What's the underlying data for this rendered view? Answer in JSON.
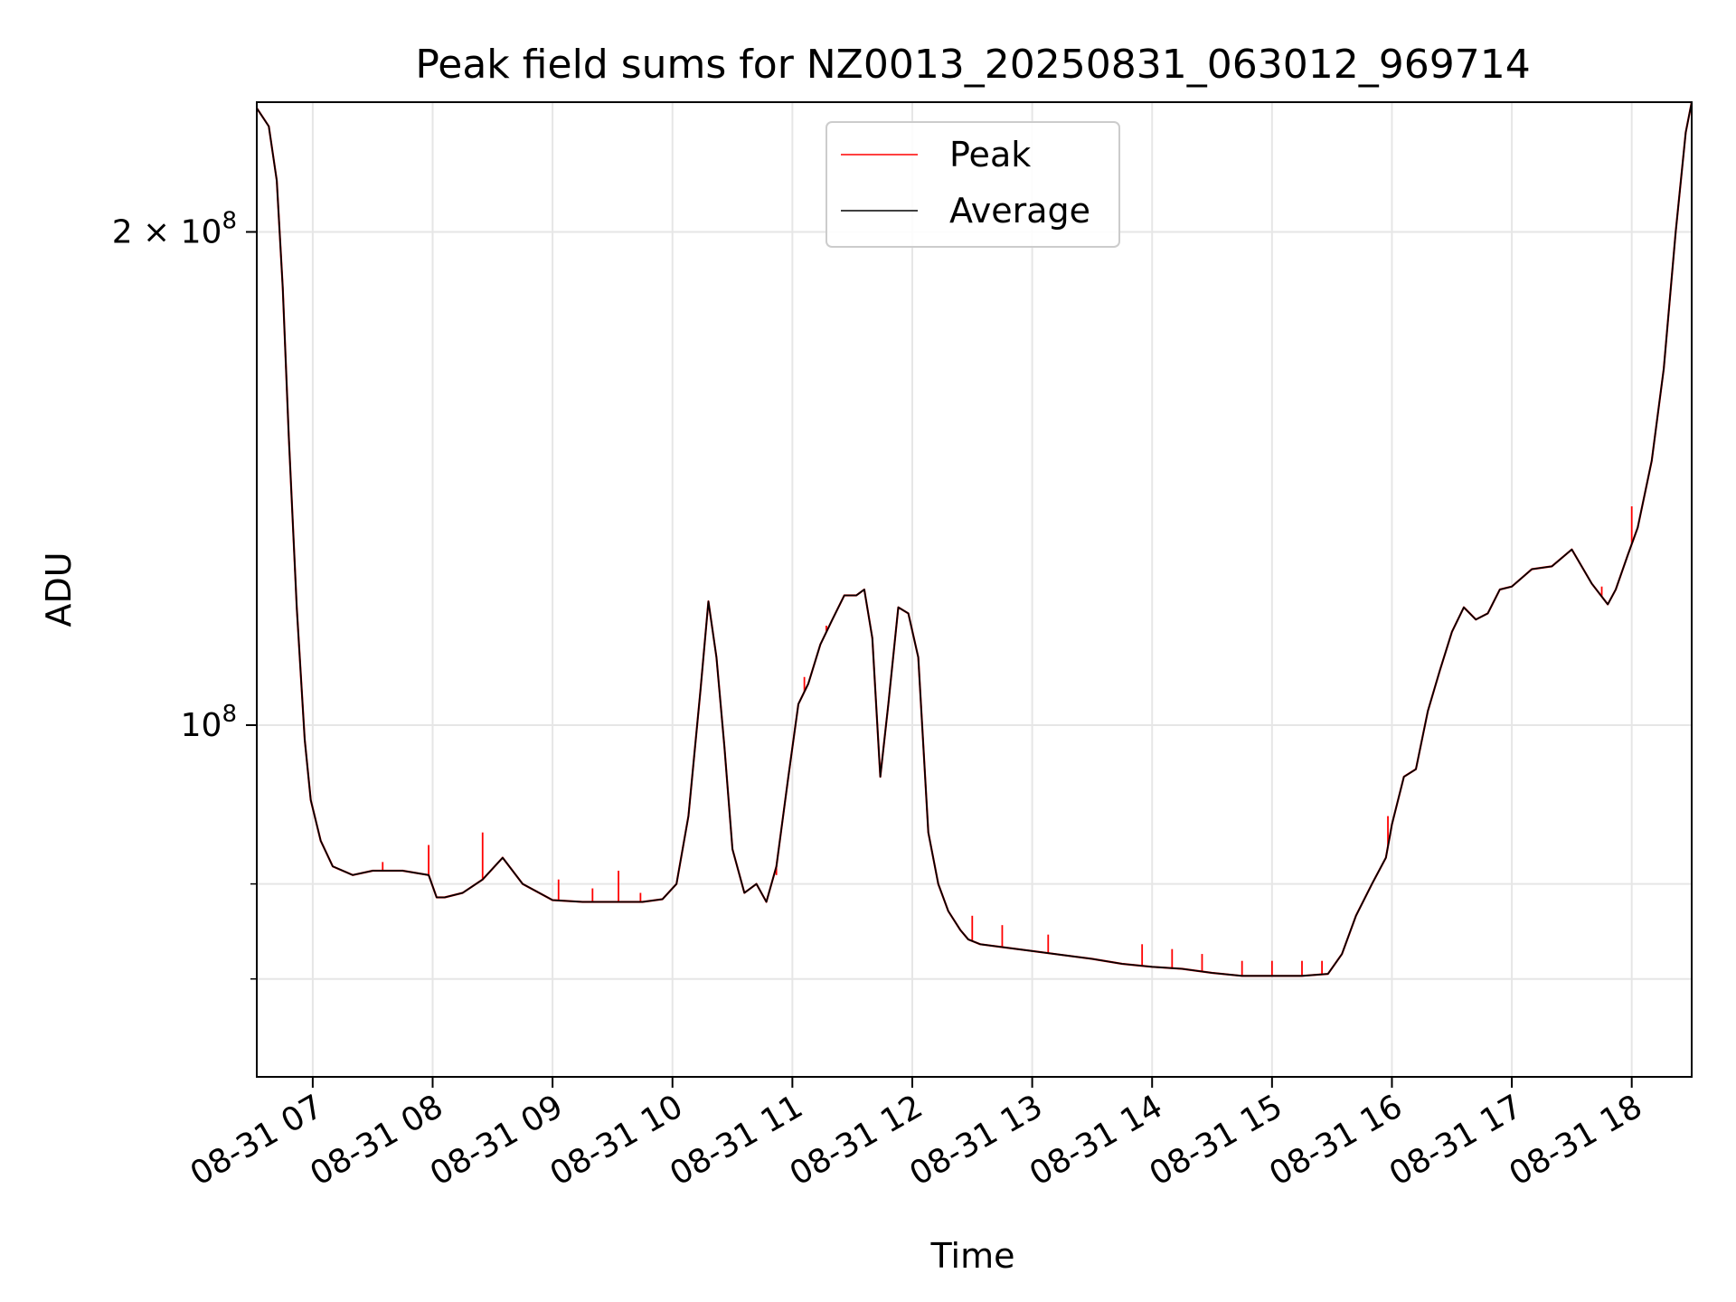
{
  "chart_data": {
    "type": "line",
    "title": "Peak field sums for NZ0013_20250831_063012_969714",
    "xlabel": "Time",
    "ylabel": "ADU",
    "x_scale": "time",
    "y_scale": "log",
    "xlim": [
      "2025-08-31 06:32",
      "2025-08-31 18:30"
    ],
    "ylim": [
      61000000,
      240000000
    ],
    "grid": true,
    "legend_position": "upper center",
    "x_ticks": [
      {
        "x": "2025-08-31 07:00",
        "label": "08-31 07"
      },
      {
        "x": "2025-08-31 08:00",
        "label": "08-31 08"
      },
      {
        "x": "2025-08-31 09:00",
        "label": "08-31 09"
      },
      {
        "x": "2025-08-31 10:00",
        "label": "08-31 10"
      },
      {
        "x": "2025-08-31 11:00",
        "label": "08-31 11"
      },
      {
        "x": "2025-08-31 12:00",
        "label": "08-31 12"
      },
      {
        "x": "2025-08-31 13:00",
        "label": "08-31 13"
      },
      {
        "x": "2025-08-31 14:00",
        "label": "08-31 14"
      },
      {
        "x": "2025-08-31 15:00",
        "label": "08-31 15"
      },
      {
        "x": "2025-08-31 16:00",
        "label": "08-31 16"
      },
      {
        "x": "2025-08-31 17:00",
        "label": "08-31 17"
      },
      {
        "x": "2025-08-31 18:00",
        "label": "08-31 18"
      }
    ],
    "y_ticks": [
      {
        "value": 100000000,
        "base": "10",
        "exp": "8"
      },
      {
        "value": 200000000,
        "base": "2 × 10",
        "exp": "8"
      }
    ],
    "y_minor_ticks": [
      70000000,
      80000000
    ],
    "series": [
      {
        "name": "Average",
        "color": "#000000",
        "x": [
          "2025-08-31 06:32",
          "2025-08-31 06:38",
          "2025-08-31 06:42",
          "2025-08-31 06:45",
          "2025-08-31 06:48",
          "2025-08-31 06:52",
          "2025-08-31 06:56",
          "2025-08-31 06:59",
          "2025-08-31 07:04",
          "2025-08-31 07:10",
          "2025-08-31 07:20",
          "2025-08-31 07:30",
          "2025-08-31 07:45",
          "2025-08-31 07:58",
          "2025-08-31 08:02",
          "2025-08-31 08:06",
          "2025-08-31 08:15",
          "2025-08-31 08:25",
          "2025-08-31 08:35",
          "2025-08-31 08:45",
          "2025-08-31 09:00",
          "2025-08-31 09:15",
          "2025-08-31 09:30",
          "2025-08-31 09:45",
          "2025-08-31 09:55",
          "2025-08-31 10:02",
          "2025-08-31 10:08",
          "2025-08-31 10:14",
          "2025-08-31 10:18",
          "2025-08-31 10:22",
          "2025-08-31 10:26",
          "2025-08-31 10:30",
          "2025-08-31 10:36",
          "2025-08-31 10:42",
          "2025-08-31 10:47",
          "2025-08-31 10:52",
          "2025-08-31 10:58",
          "2025-08-31 11:03",
          "2025-08-31 11:08",
          "2025-08-31 11:14",
          "2025-08-31 11:20",
          "2025-08-31 11:26",
          "2025-08-31 11:32",
          "2025-08-31 11:36",
          "2025-08-31 11:40",
          "2025-08-31 11:44",
          "2025-08-31 11:48",
          "2025-08-31 11:53",
          "2025-08-31 11:58",
          "2025-08-31 12:03",
          "2025-08-31 12:08",
          "2025-08-31 12:13",
          "2025-08-31 12:18",
          "2025-08-31 12:24",
          "2025-08-31 12:28",
          "2025-08-31 12:34",
          "2025-08-31 12:45",
          "2025-08-31 13:00",
          "2025-08-31 13:15",
          "2025-08-31 13:30",
          "2025-08-31 13:45",
          "2025-08-31 14:00",
          "2025-08-31 14:15",
          "2025-08-31 14:30",
          "2025-08-31 14:45",
          "2025-08-31 15:00",
          "2025-08-31 15:15",
          "2025-08-31 15:28",
          "2025-08-31 15:35",
          "2025-08-31 15:42",
          "2025-08-31 15:50",
          "2025-08-31 15:57",
          "2025-08-31 16:00",
          "2025-08-31 16:06",
          "2025-08-31 16:12",
          "2025-08-31 16:18",
          "2025-08-31 16:24",
          "2025-08-31 16:30",
          "2025-08-31 16:36",
          "2025-08-31 16:42",
          "2025-08-31 16:48",
          "2025-08-31 16:54",
          "2025-08-31 17:00",
          "2025-08-31 17:10",
          "2025-08-31 17:20",
          "2025-08-31 17:30",
          "2025-08-31 17:40",
          "2025-08-31 17:48",
          "2025-08-31 17:52",
          "2025-08-31 17:58",
          "2025-08-31 18:03",
          "2025-08-31 18:10",
          "2025-08-31 18:16",
          "2025-08-31 18:22",
          "2025-08-31 18:27",
          "2025-08-31 18:30"
        ],
        "values": [
          238000000,
          232000000,
          215000000,
          185000000,
          150000000,
          118000000,
          98000000,
          90000000,
          85000000,
          82000000,
          81000000,
          81500000,
          81500000,
          81000000,
          78500000,
          78500000,
          79000000,
          80500000,
          83000000,
          80000000,
          78200000,
          78000000,
          78000000,
          78000000,
          78300000,
          80000000,
          88000000,
          105000000,
          119000000,
          110000000,
          97000000,
          84000000,
          79000000,
          80000000,
          78000000,
          82000000,
          93000000,
          103000000,
          106000000,
          112000000,
          116000000,
          120000000,
          120000000,
          121000000,
          113000000,
          93000000,
          103000000,
          118000000,
          117000000,
          110000000,
          86000000,
          80000000,
          77000000,
          75000000,
          74000000,
          73500000,
          73200000,
          72800000,
          72400000,
          72000000,
          71500000,
          71200000,
          71000000,
          70600000,
          70300000,
          70300000,
          70300000,
          70500000,
          72500000,
          76500000,
          80000000,
          83000000,
          87000000,
          93000000,
          94000000,
          102000000,
          108000000,
          114000000,
          118000000,
          116000000,
          117000000,
          121000000,
          121500000,
          124500000,
          125000000,
          128000000,
          122000000,
          118500000,
          121000000,
          127000000,
          132000000,
          145000000,
          165000000,
          200000000,
          230000000,
          240000000
        ]
      },
      {
        "name": "Peak",
        "color": "#ff0000",
        "spikes": [
          {
            "x": "2025-08-31 07:35",
            "value": 82500000
          },
          {
            "x": "2025-08-31 07:58",
            "value": 84500000
          },
          {
            "x": "2025-08-31 08:25",
            "value": 86000000
          },
          {
            "x": "2025-08-31 09:03",
            "value": 80500000
          },
          {
            "x": "2025-08-31 09:20",
            "value": 79500000
          },
          {
            "x": "2025-08-31 09:33",
            "value": 81500000
          },
          {
            "x": "2025-08-31 09:44",
            "value": 79000000
          },
          {
            "x": "2025-08-31 10:52",
            "value": 81000000
          },
          {
            "x": "2025-08-31 11:06",
            "value": 107000000
          },
          {
            "x": "2025-08-31 11:17",
            "value": 115000000
          },
          {
            "x": "2025-08-31 12:30",
            "value": 76500000
          },
          {
            "x": "2025-08-31 12:45",
            "value": 75500000
          },
          {
            "x": "2025-08-31 13:08",
            "value": 74500000
          },
          {
            "x": "2025-08-31 13:55",
            "value": 73500000
          },
          {
            "x": "2025-08-31 14:10",
            "value": 73000000
          },
          {
            "x": "2025-08-31 14:25",
            "value": 72500000
          },
          {
            "x": "2025-08-31 14:45",
            "value": 71800000
          },
          {
            "x": "2025-08-31 15:00",
            "value": 71800000
          },
          {
            "x": "2025-08-31 15:15",
            "value": 71800000
          },
          {
            "x": "2025-08-31 15:25",
            "value": 71800000
          },
          {
            "x": "2025-08-31 15:58",
            "value": 88000000
          },
          {
            "x": "2025-08-31 17:05",
            "value": 123000000
          },
          {
            "x": "2025-08-31 17:45",
            "value": 121500000
          },
          {
            "x": "2025-08-31 18:00",
            "value": 136000000
          }
        ]
      }
    ]
  }
}
